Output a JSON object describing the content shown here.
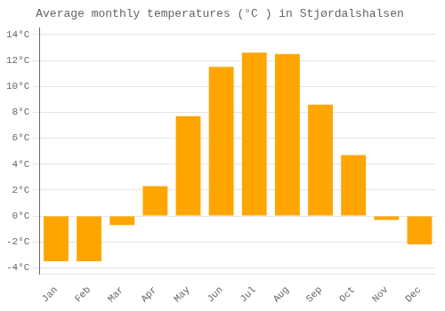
{
  "chart_data": {
    "type": "bar",
    "title": "Average monthly temperatures (°C ) in Stjørdalshalsen",
    "categories": [
      "Jan",
      "Feb",
      "Mar",
      "Apr",
      "May",
      "Jun",
      "Jul",
      "Aug",
      "Sep",
      "Oct",
      "Nov",
      "Dec"
    ],
    "values": [
      -3.5,
      -3.5,
      -0.7,
      2.3,
      7.7,
      11.5,
      12.6,
      12.5,
      8.6,
      4.7,
      -0.3,
      -2.2
    ],
    "color": "#FFA500",
    "ylim": [
      -4.5,
      14.5
    ],
    "yticks": [
      {
        "value": -4,
        "label": "-4°C"
      },
      {
        "value": -2,
        "label": "-2°C"
      },
      {
        "value": 0,
        "label": "0°C"
      },
      {
        "value": 2,
        "label": "2°C"
      },
      {
        "value": 4,
        "label": "4°C"
      },
      {
        "value": 6,
        "label": "6°C"
      },
      {
        "value": 8,
        "label": "8°C"
      },
      {
        "value": 10,
        "label": "10°C"
      },
      {
        "value": 12,
        "label": "12°C"
      },
      {
        "value": 14,
        "label": "14°C"
      }
    ],
    "grid": true
  }
}
